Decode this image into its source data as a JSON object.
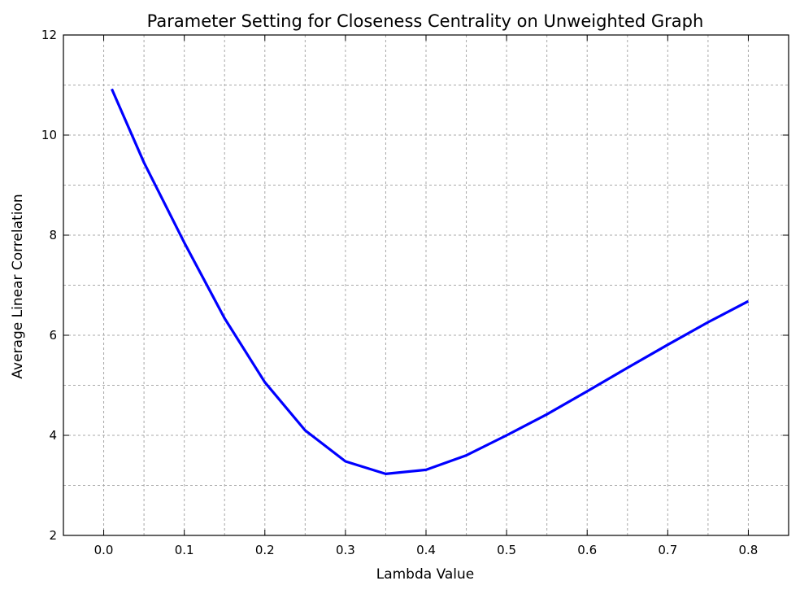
{
  "chart_data": {
    "type": "line",
    "title": "Parameter Setting for Closeness Centrality on Unweighted Graph",
    "xlabel": "Lambda Value",
    "ylabel": "Average Linear Correlation",
    "xlim": [
      -0.05,
      0.85
    ],
    "ylim": [
      2,
      12
    ],
    "x_ticks": [
      0.0,
      0.1,
      0.2,
      0.3,
      0.4,
      0.5,
      0.6,
      0.7,
      0.8
    ],
    "x_tick_labels": [
      "0.0",
      "0.1",
      "0.2",
      "0.3",
      "0.4",
      "0.5",
      "0.6",
      "0.7",
      "0.8"
    ],
    "y_ticks": [
      2,
      4,
      6,
      8,
      10,
      12
    ],
    "y_tick_labels": [
      "2",
      "4",
      "6",
      "8",
      "10",
      "12"
    ],
    "x_minor_grid": [
      0.05,
      0.15,
      0.25,
      0.35,
      0.45,
      0.55,
      0.65,
      0.75
    ],
    "y_minor_grid": [
      3,
      5,
      7,
      9,
      11
    ],
    "grid": true,
    "legend": "none",
    "series": [
      {
        "color": "#0000ff",
        "x": [
          0.01,
          0.05,
          0.1,
          0.15,
          0.2,
          0.25,
          0.3,
          0.35,
          0.4,
          0.45,
          0.5,
          0.55,
          0.6,
          0.65,
          0.7,
          0.75,
          0.8
        ],
        "y": [
          10.92,
          9.45,
          7.85,
          6.34,
          5.06,
          4.1,
          3.48,
          3.23,
          3.31,
          3.6,
          4.0,
          4.42,
          4.88,
          5.35,
          5.81,
          6.26,
          6.68
        ]
      }
    ]
  }
}
